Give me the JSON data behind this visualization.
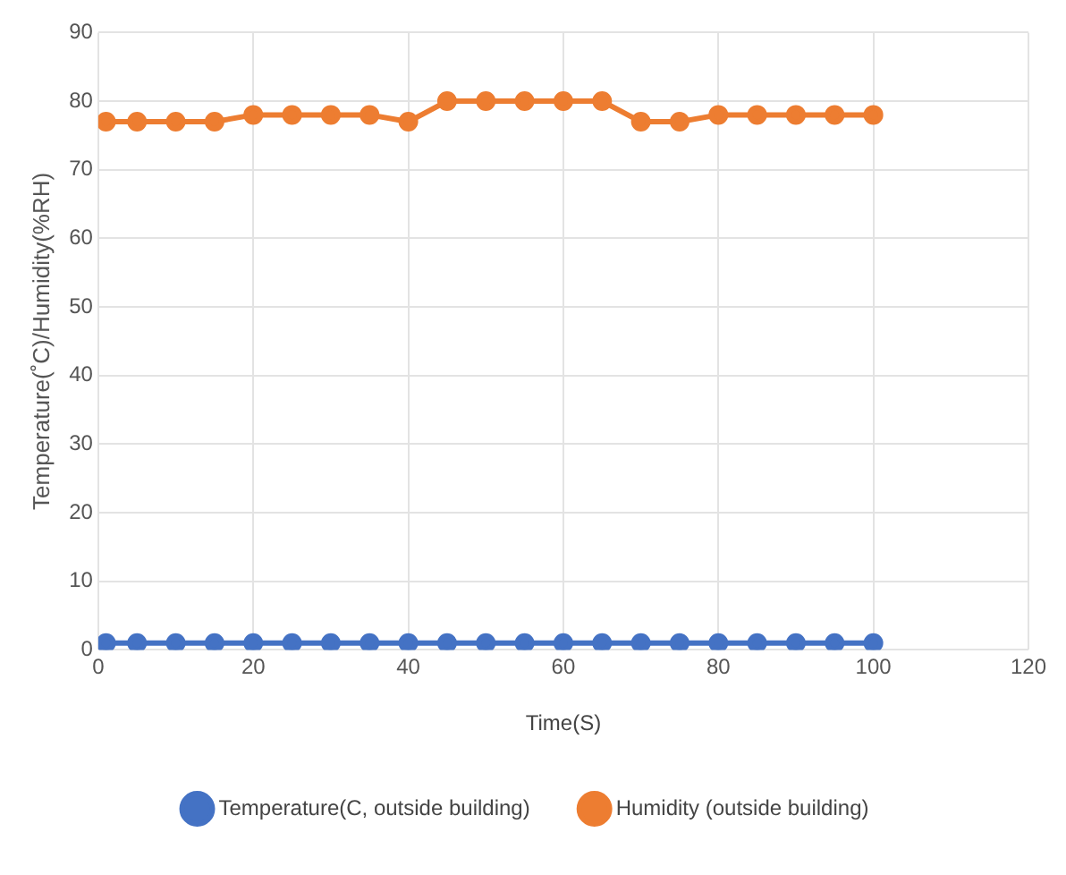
{
  "chart_data": {
    "type": "line",
    "xlabel": "Time(S)",
    "ylabel": "Temperature(˚C)/Humidity(%RH)",
    "x": [
      1,
      5,
      10,
      15,
      20,
      25,
      30,
      35,
      40,
      45,
      50,
      55,
      60,
      65,
      70,
      75,
      80,
      85,
      90,
      95,
      100
    ],
    "series": [
      {
        "name": "Temperature(C, outside building)",
        "color": "#4472c4",
        "values": [
          1,
          1,
          1,
          1,
          1,
          1,
          1,
          1,
          1,
          1,
          1,
          1,
          1,
          1,
          1,
          1,
          1,
          1,
          1,
          1,
          1
        ]
      },
      {
        "name": "Humidity (outside building)",
        "color": "#ed7d31",
        "values": [
          77,
          77,
          77,
          77,
          78,
          78,
          78,
          78,
          77,
          80,
          80,
          80,
          80,
          80,
          77,
          77,
          78,
          78,
          78,
          78,
          78
        ]
      }
    ],
    "xlim": [
      0,
      120
    ],
    "xticks": [
      0,
      20,
      40,
      60,
      80,
      100,
      120
    ],
    "ylim": [
      0,
      90
    ],
    "yticks": [
      0,
      10,
      20,
      30,
      40,
      50,
      60,
      70,
      80,
      90
    ],
    "grid": true,
    "legend": "bottom",
    "marker": "circle",
    "line_style": "solid"
  }
}
